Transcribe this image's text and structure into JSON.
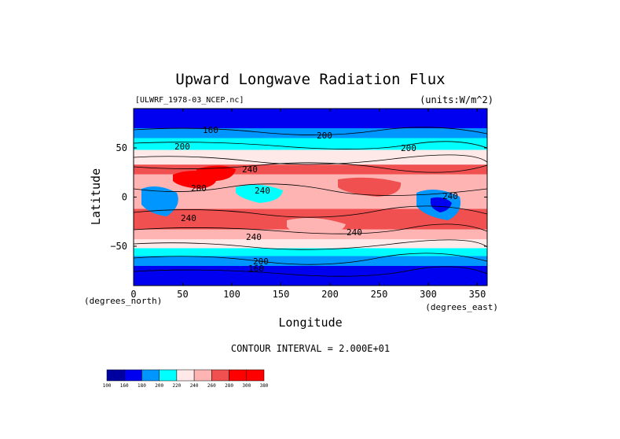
{
  "chart_data": {
    "type": "heatmap",
    "title": "Upward Longwave Radiation Flux",
    "source_label": "[ULWRF_1978-03_NCEP.nc]",
    "units_label": "(units:W/m^2)",
    "xlabel": "Longitude",
    "ylabel": "Latitude",
    "x_unit_note": "(degrees_east)",
    "y_unit_note": "(degrees_north)",
    "xlim": [
      0,
      360
    ],
    "ylim": [
      -90,
      90
    ],
    "x_ticks": [
      0,
      50,
      100,
      150,
      200,
      250,
      300,
      350
    ],
    "y_ticks": [
      50,
      0,
      -50
    ],
    "contour_interval_text": "CONTOUR INTERVAL = 2.000E+01",
    "contour_labels": [
      "160",
      "200",
      "200",
      "200",
      "240",
      "280",
      "240",
      "240",
      "240",
      "240",
      "240",
      "200",
      "160"
    ],
    "colorbar": {
      "levels": [
        100,
        160,
        180,
        200,
        220,
        240,
        260,
        280,
        300,
        380
      ],
      "tick_labels": [
        "100",
        "160",
        "180",
        "200",
        "220",
        "240",
        "260",
        "280",
        "300",
        "380"
      ],
      "colors": [
        "#0000a0",
        "#0000f0",
        "#0096ff",
        "#00ffff",
        "#ffe8e8",
        "#ffb4b4",
        "#f05050",
        "#ff0000",
        "#ff0000"
      ]
    },
    "zonal_bands": [
      {
        "lat": [
          70,
          90
        ],
        "value": 160
      },
      {
        "lat": [
          60,
          70
        ],
        "value": 190
      },
      {
        "lat": [
          48,
          60
        ],
        "value": 210
      },
      {
        "lat": [
          33,
          48
        ],
        "value": 230
      },
      {
        "lat": [
          23,
          33
        ],
        "value": 270
      },
      {
        "lat": [
          12,
          23
        ],
        "value": 250
      },
      {
        "lat": [
          -12,
          12
        ],
        "value": 250
      },
      {
        "lat": [
          -33,
          -12
        ],
        "value": 270
      },
      {
        "lat": [
          -43,
          -33
        ],
        "value": 250
      },
      {
        "lat": [
          -52,
          -43
        ],
        "value": 230
      },
      {
        "lat": [
          -60,
          -52
        ],
        "value": 210
      },
      {
        "lat": [
          -70,
          -60
        ],
        "value": 190
      },
      {
        "lat": [
          -90,
          -70
        ],
        "value": 160
      }
    ]
  }
}
